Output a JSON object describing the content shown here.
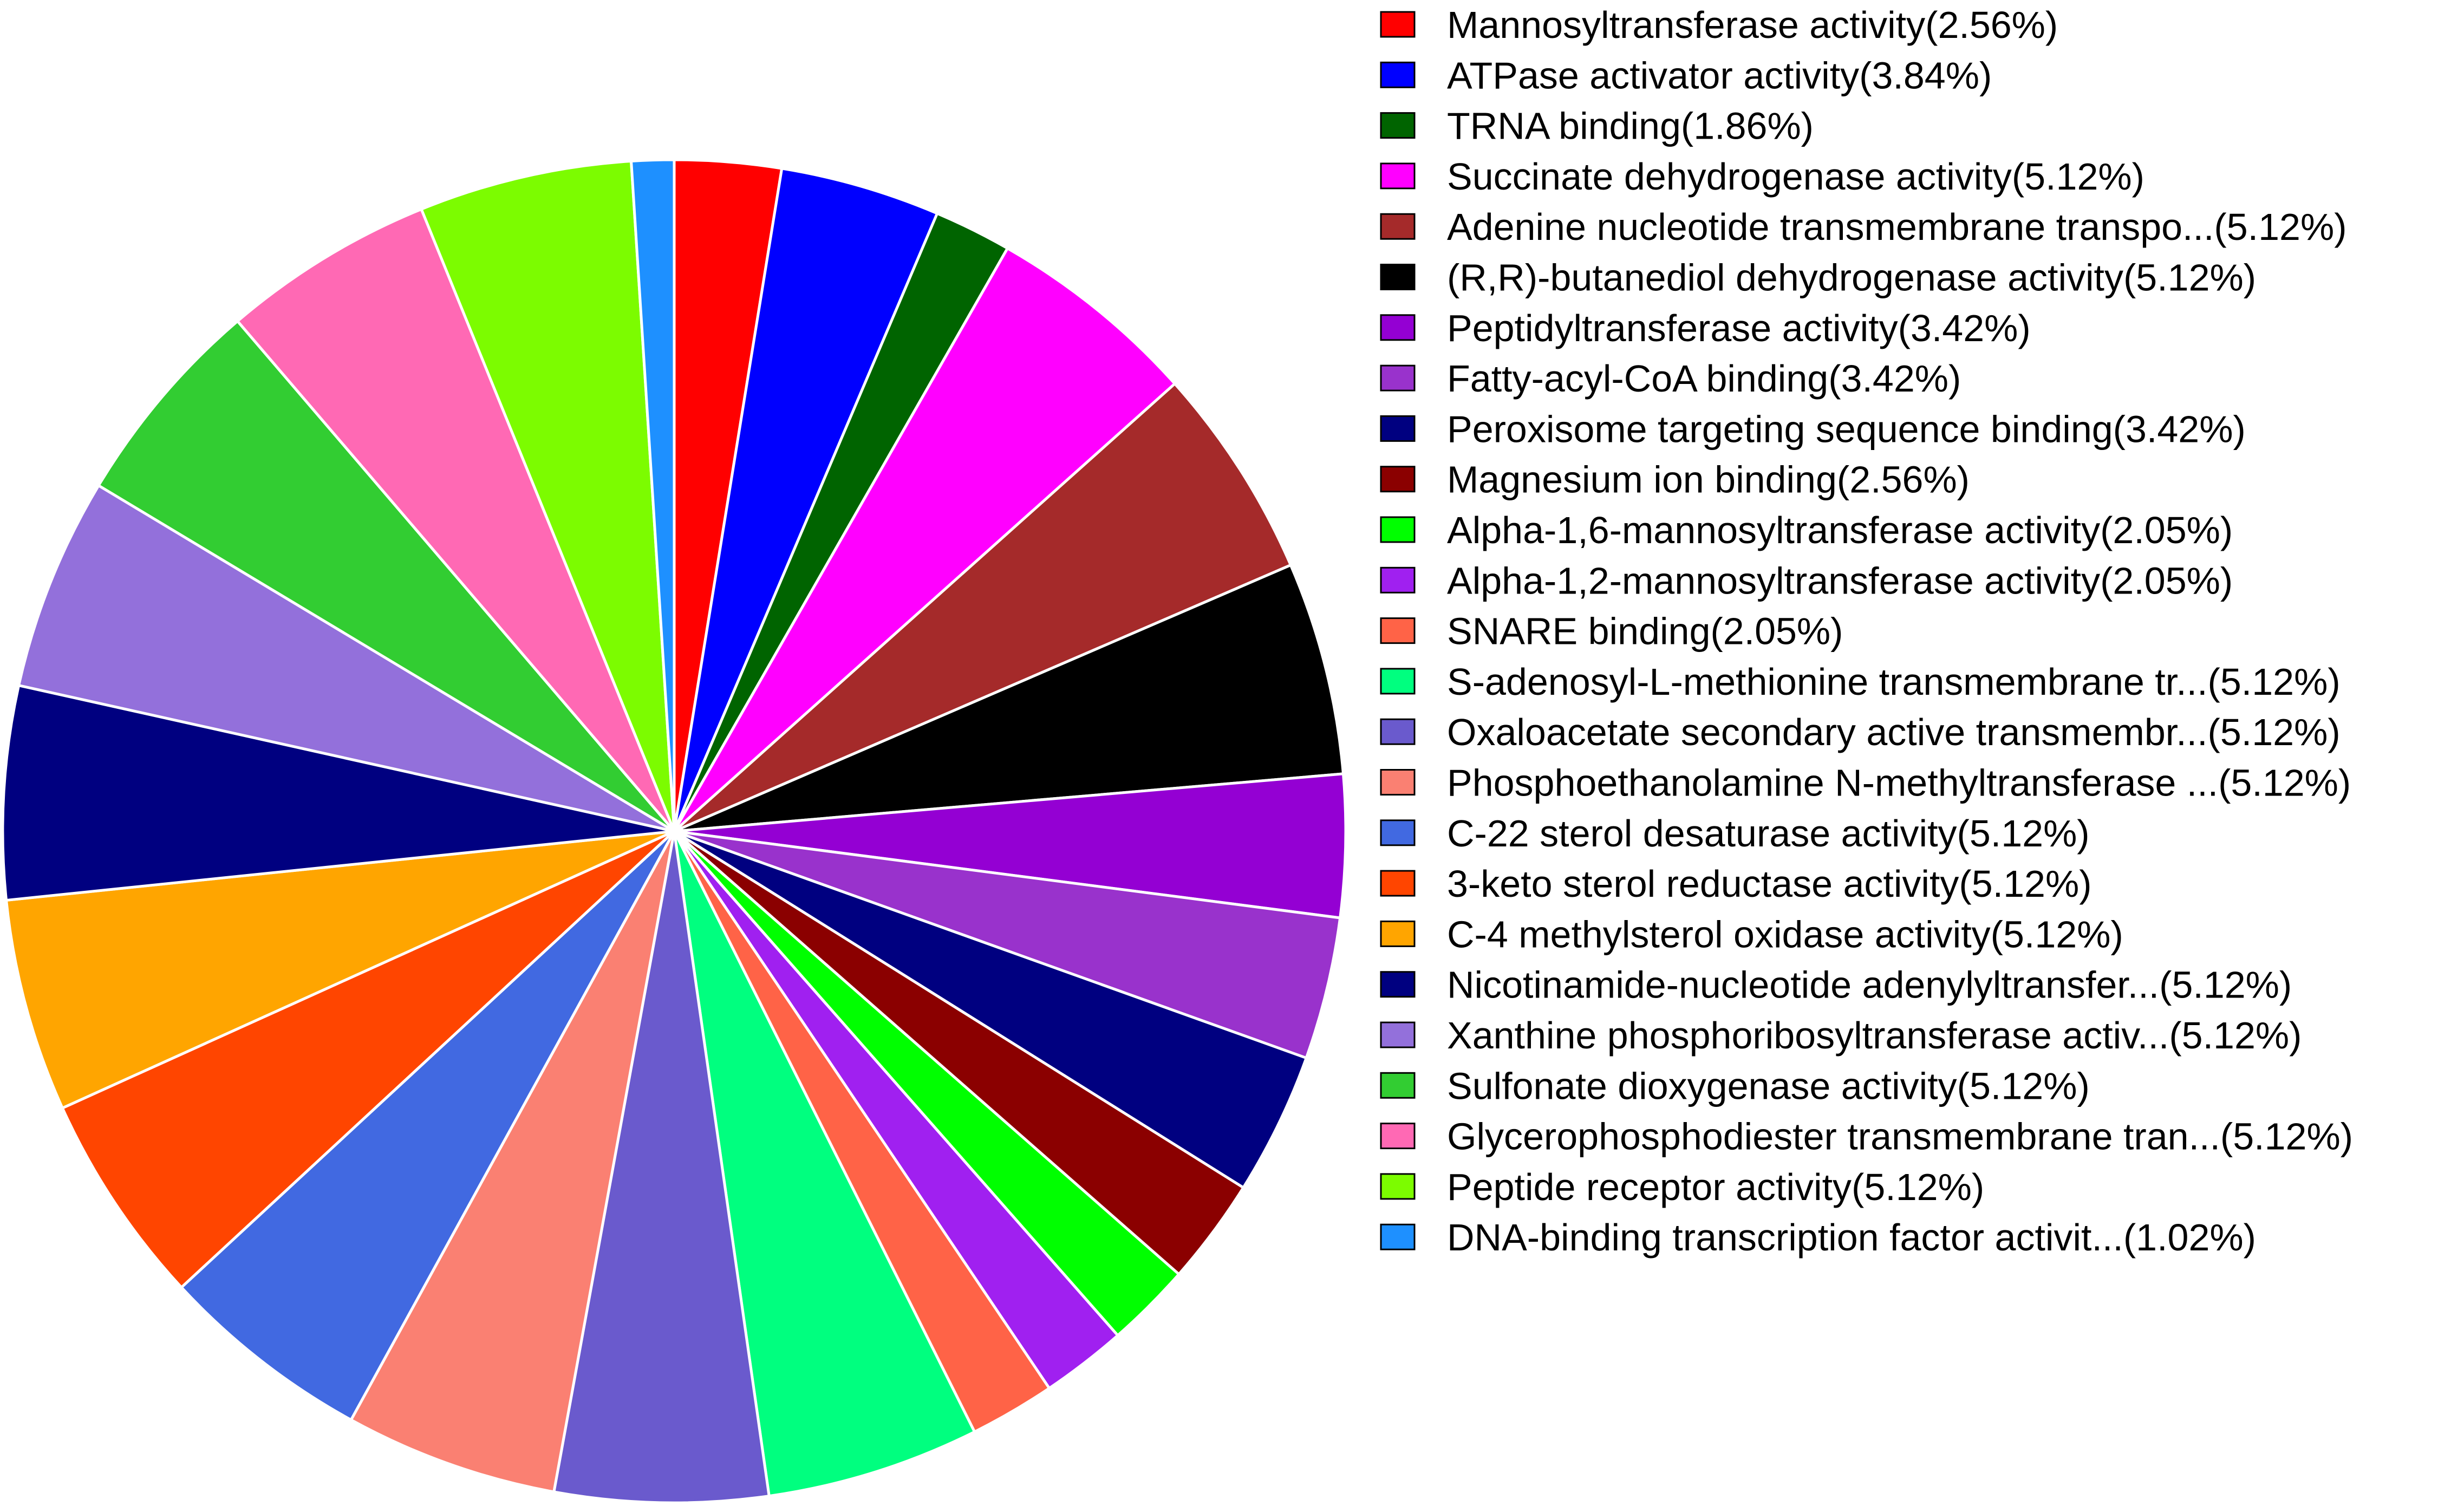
{
  "chart_data": {
    "type": "pie",
    "title": "",
    "start_angle": "12 o'clock",
    "direction": "clockwise",
    "legend_position": "right",
    "slices": [
      {
        "label": "Mannosyltransferase activity(2.56%)",
        "value": 2.56,
        "color": "#FF0000"
      },
      {
        "label": "ATPase activator activity(3.84%)",
        "value": 3.84,
        "color": "#0000FF"
      },
      {
        "label": "TRNA binding(1.86%)",
        "value": 1.86,
        "color": "#006400"
      },
      {
        "label": "Succinate dehydrogenase activity(5.12%)",
        "value": 5.12,
        "color": "#FF00FF"
      },
      {
        "label": "Adenine nucleotide transmembrane transpo...(5.12%)",
        "value": 5.12,
        "color": "#A52A2A"
      },
      {
        "label": "(R,R)-butanediol dehydrogenase activity(5.12%)",
        "value": 5.12,
        "color": "#000000"
      },
      {
        "label": "Peptidyltransferase activity(3.42%)",
        "value": 3.42,
        "color": "#9400D3"
      },
      {
        "label": "Fatty-acyl-CoA binding(3.42%)",
        "value": 3.42,
        "color": "#9932CC"
      },
      {
        "label": "Peroxisome targeting sequence binding(3.42%)",
        "value": 3.42,
        "color": "#000080"
      },
      {
        "label": "Magnesium ion binding(2.56%)",
        "value": 2.56,
        "color": "#8B0000"
      },
      {
        "label": "Alpha-1,6-mannosyltransferase activity(2.05%)",
        "value": 2.05,
        "color": "#00FF00"
      },
      {
        "label": "Alpha-1,2-mannosyltransferase activity(2.05%)",
        "value": 2.05,
        "color": "#A020F0"
      },
      {
        "label": "SNARE binding(2.05%)",
        "value": 2.05,
        "color": "#FF6347"
      },
      {
        "label": "S-adenosyl-L-methionine transmembrane tr...(5.12%)",
        "value": 5.12,
        "color": "#00FF7F"
      },
      {
        "label": "Oxaloacetate secondary active transmembr...(5.12%)",
        "value": 5.12,
        "color": "#6A5ACD"
      },
      {
        "label": "Phosphoethanolamine N-methyltransferase ...(5.12%)",
        "value": 5.12,
        "color": "#FA8072"
      },
      {
        "label": "C-22 sterol desaturase activity(5.12%)",
        "value": 5.12,
        "color": "#4169E1"
      },
      {
        "label": "3-keto sterol reductase activity(5.12%)",
        "value": 5.12,
        "color": "#FF4500"
      },
      {
        "label": "C-4 methylsterol oxidase activity(5.12%)",
        "value": 5.12,
        "color": "#FFA500"
      },
      {
        "label": "Nicotinamide-nucleotide adenylyltransfer...(5.12%)",
        "value": 5.12,
        "color": "#000080"
      },
      {
        "label": "Xanthine phosphoribosyltransferase activ...(5.12%)",
        "value": 5.12,
        "color": "#9370DB"
      },
      {
        "label": "Sulfonate dioxygenase activity(5.12%)",
        "value": 5.12,
        "color": "#32CD32"
      },
      {
        "label": "Glycerophosphodiester transmembrane tran...(5.12%)",
        "value": 5.12,
        "color": "#FF69B4"
      },
      {
        "label": "Peptide receptor activity(5.12%)",
        "value": 5.12,
        "color": "#7CFC00"
      },
      {
        "label": "DNA-binding transcription factor activit...(1.02%)",
        "value": 1.02,
        "color": "#1E90FF"
      }
    ]
  }
}
